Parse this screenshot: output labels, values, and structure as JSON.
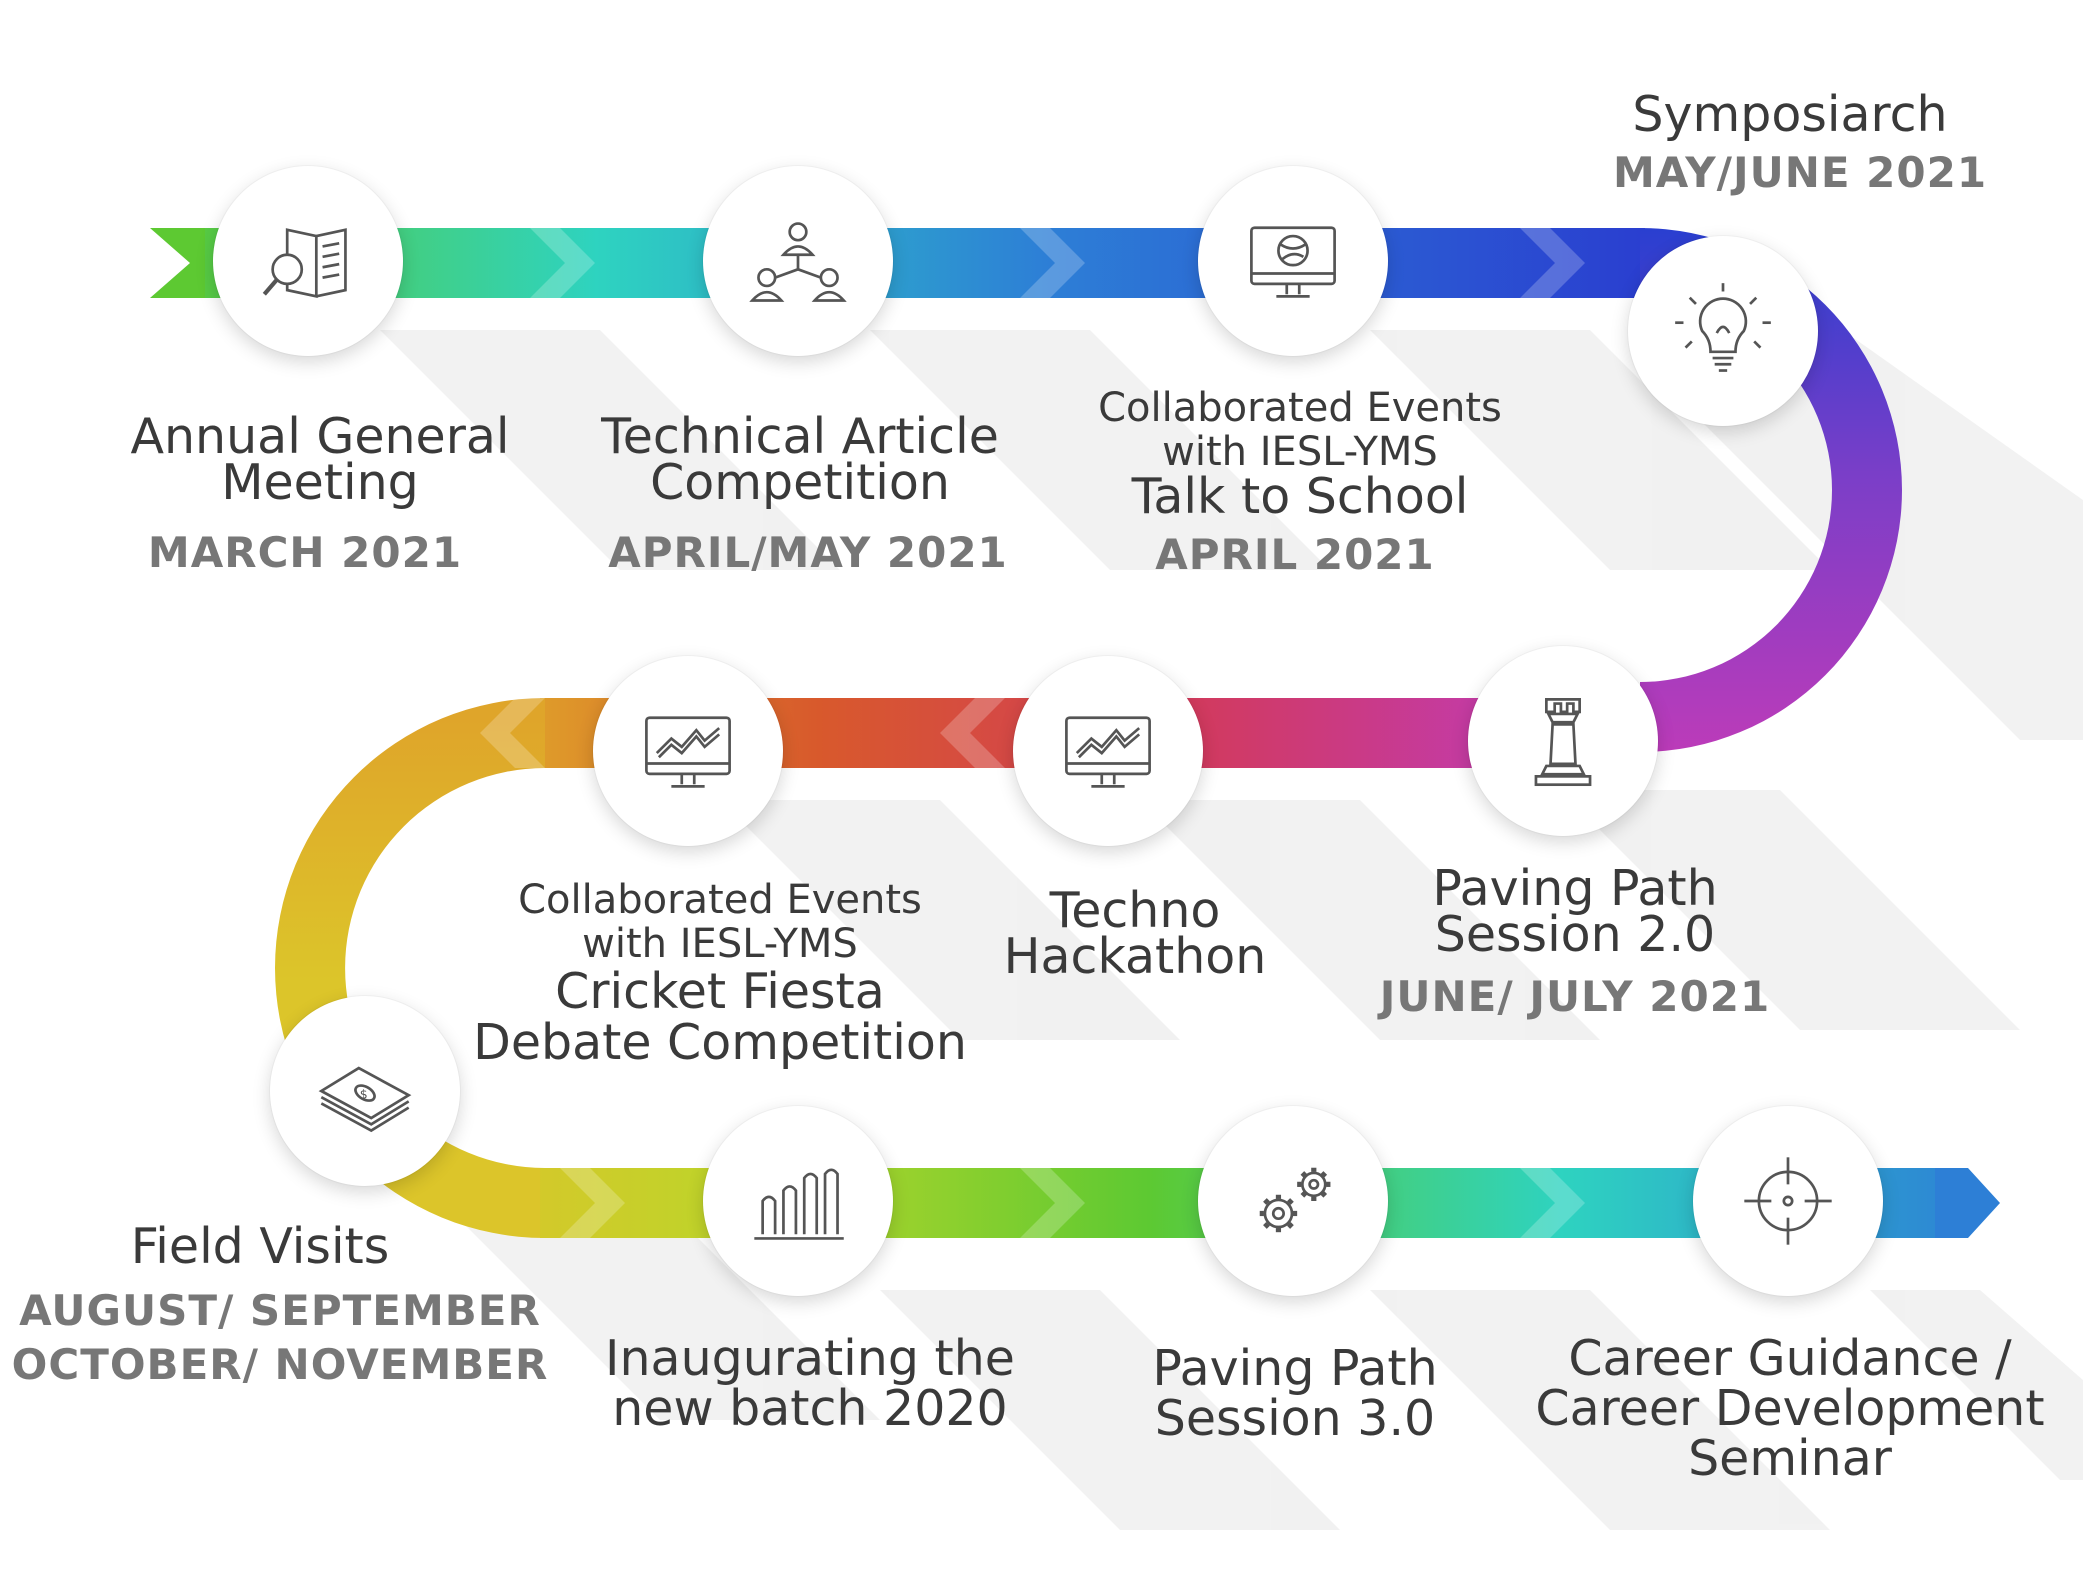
{
  "colors": {
    "green": "#5dc932",
    "teal": "#2ed3c0",
    "blue": "#2d7fd6",
    "indigo": "#2a3fd0",
    "purple": "#7a3ec8",
    "magenta": "#c03bb8",
    "crimson": "#d23a5c",
    "orange": "#d8592c",
    "amber": "#dfa52a",
    "yellow": "#dcc52a",
    "lime": "#b9d62a",
    "text": "#3a3a3a",
    "date": "#777777"
  },
  "events": [
    {
      "id": "annual-general-meeting",
      "icon": "newspaper-search-icon",
      "title": [
        "Annual General",
        "Meeting"
      ],
      "date": [
        "MARCH 2021"
      ]
    },
    {
      "id": "technical-article-competition",
      "icon": "team-network-icon",
      "title": [
        "Technical Article",
        "Competition"
      ],
      "date": [
        "APRIL/MAY 2021"
      ]
    },
    {
      "id": "talk-to-school",
      "icon": "monitor-globe-icon",
      "pre": [
        "Collaborated Events",
        "with IESL-YMS"
      ],
      "title": [
        "Talk to School"
      ],
      "date": [
        "APRIL 2021"
      ]
    },
    {
      "id": "symposiarch",
      "icon": "lightbulb-icon",
      "title": [
        "Symposiarch"
      ],
      "date": [
        "MAY/JUNE 2021"
      ]
    },
    {
      "id": "paving-path-2",
      "icon": "chess-rook-icon",
      "title": [
        "Paving Path",
        "Session 2.0"
      ],
      "date": [
        "JUNE/ JULY 2021"
      ]
    },
    {
      "id": "techno-hackathon",
      "icon": "monitor-chart-icon",
      "title": [
        "Techno",
        "Hackathon"
      ],
      "date": []
    },
    {
      "id": "cricket-debate",
      "icon": "monitor-chart-icon",
      "pre": [
        "Collaborated Events",
        "with IESL-YMS"
      ],
      "title": [
        "Cricket Fiesta",
        "Debate Competition"
      ],
      "date": []
    },
    {
      "id": "field-visits",
      "icon": "money-stack-icon",
      "title": [
        "Field Visits"
      ],
      "date": [
        "AUGUST/ SEPTEMBER",
        "OCTOBER/ NOVEMBER"
      ]
    },
    {
      "id": "inaugurating-batch",
      "icon": "bar-chart-icon",
      "title": [
        "Inaugurating the",
        "new batch 2020"
      ],
      "date": []
    },
    {
      "id": "paving-path-3",
      "icon": "gears-icon",
      "title": [
        "Paving Path",
        "Session 3.0"
      ],
      "date": []
    },
    {
      "id": "career-guidance",
      "icon": "target-icon",
      "title": [
        "Career Guidance /",
        "Career Development",
        "Seminar"
      ],
      "date": []
    }
  ]
}
